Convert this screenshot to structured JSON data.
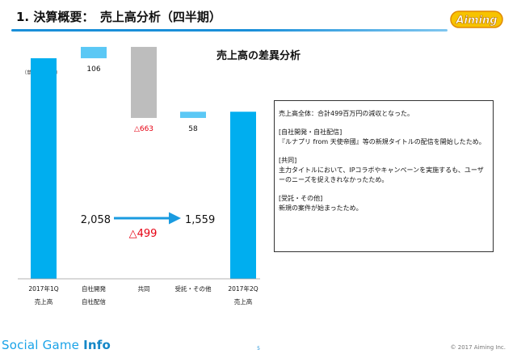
{
  "header": {
    "title": "1. 決算概要：　売上高分析（四半期）",
    "logo_text": "Aiming"
  },
  "chart_data": {
    "type": "waterfall",
    "title": "売上高の差異分析",
    "unit_note": "（単位：百万円）",
    "categories": [
      [
        "2017年1Q",
        "売上高"
      ],
      [
        "自社開発",
        "自社配信"
      ],
      [
        "共同"
      ],
      [
        "受託・その他"
      ],
      [
        "2017年2Q",
        "売上高"
      ]
    ],
    "steps": [
      {
        "kind": "total",
        "value": 2058
      },
      {
        "kind": "delta",
        "value": 106,
        "label": "106"
      },
      {
        "kind": "delta",
        "value": -663,
        "label": "△663"
      },
      {
        "kind": "delta",
        "value": 58,
        "label": "58"
      },
      {
        "kind": "total",
        "value": 1559
      }
    ],
    "annotation": {
      "from": "2,058",
      "to": "1,559",
      "change": "△499"
    },
    "colors": {
      "total": "#00aeef",
      "increase": "#5bc8f5",
      "decrease": "#bdbdbd",
      "negative_text": "#e60012",
      "arrow": "#1a9be0"
    },
    "ylim": [
      0,
      2300
    ]
  },
  "notes": [
    {
      "heading": "売上高全体：合計499百万円の減収となった。",
      "body": ""
    },
    {
      "heading": "[自社開発・自社配信]",
      "body": "『ルナプリ from 天使帝國』等の新規タイトルの配信を開始したため。"
    },
    {
      "heading": "[共同]",
      "body": "主力タイトルにおいて、IPコラボやキャンペーンを実施するも、ユーザーのニーズを捉えきれなかったため。"
    },
    {
      "heading": "[受託・その他]",
      "body": "新規の案件が始まったため。"
    }
  ],
  "footer": {
    "brand_prefix": "Social Game ",
    "brand_suffix": "Info",
    "page": "5",
    "copyright": "© 2017 Aiming Inc."
  }
}
